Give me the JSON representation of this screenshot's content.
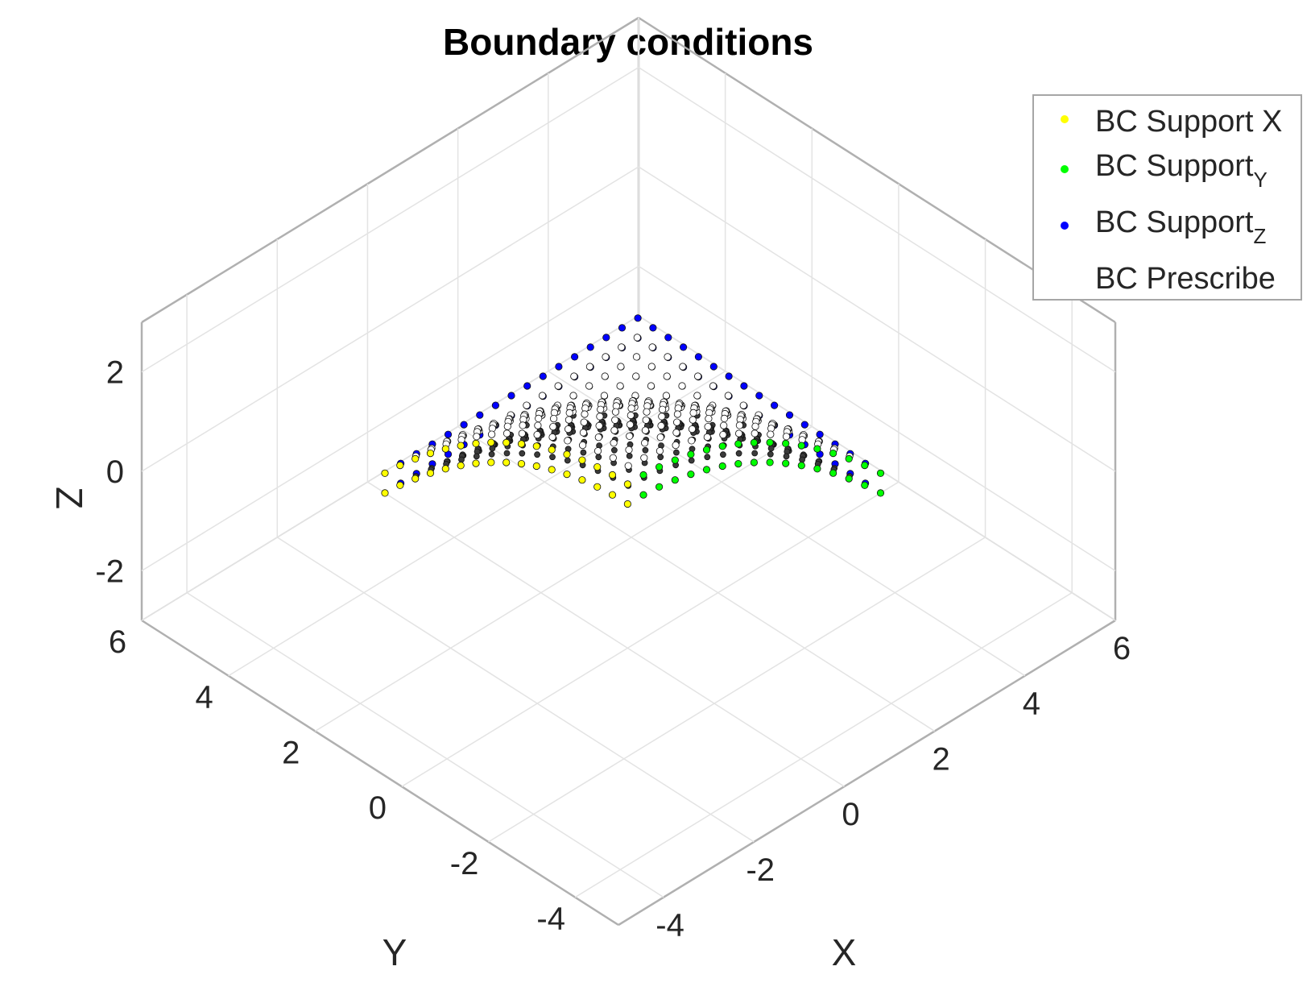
{
  "chart_data": {
    "type": "scatter3d",
    "title": "Boundary conditions",
    "xlabel": "X",
    "ylabel": "Y",
    "zlabel": "Z",
    "xlim": [
      -5,
      6
    ],
    "ylim": [
      -5,
      6
    ],
    "zlim": [
      -3,
      3
    ],
    "x_ticks": [
      "-4",
      "-2",
      "0",
      "2",
      "4",
      "6"
    ],
    "y_ticks": [
      "-4",
      "-2",
      "0",
      "2",
      "4",
      "6"
    ],
    "z_ticks": [
      "-2",
      "0",
      "2"
    ],
    "grid": true,
    "legend_position": "top-right",
    "surface": {
      "description_type": "cylindrical shell segment",
      "x_range": [
        0,
        5.6
      ],
      "y_range": [
        0,
        5.6
      ],
      "z_crown": 0.3,
      "z_edge": -2.6,
      "thickness": 0.4
    },
    "series": [
      {
        "name": "BC Support X",
        "color": "#ffff00",
        "region": "x=0 face"
      },
      {
        "name": "BC Support",
        "subscript": "Y",
        "color": "#00ff00",
        "region": "y=0 face"
      },
      {
        "name": "BC Support",
        "subscript": "Z",
        "color": "#0000ff",
        "region": "bottom edges"
      },
      {
        "name": "BC Prescribe",
        "color": "#ffffff",
        "region": "interior top"
      }
    ]
  }
}
